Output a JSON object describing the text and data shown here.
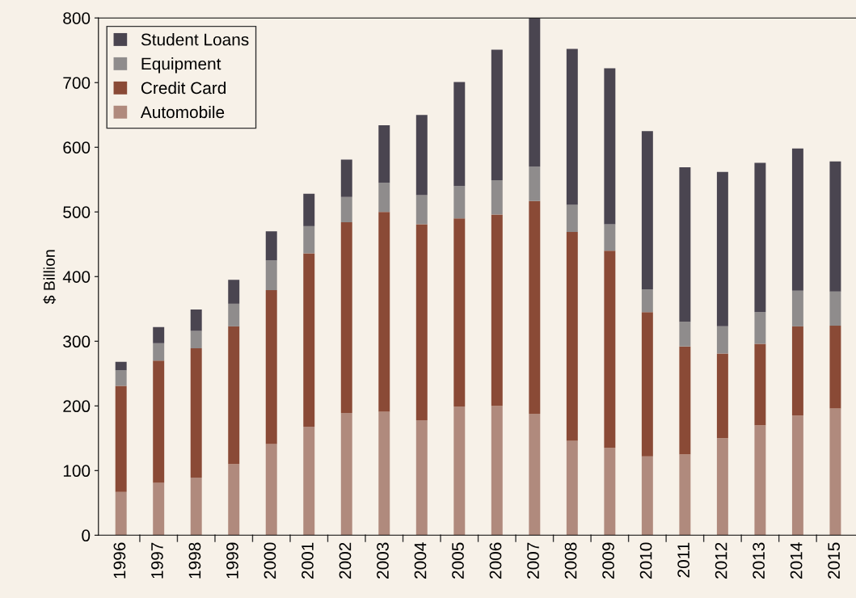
{
  "chart_data": {
    "type": "bar",
    "stacked": true,
    "ylabel": "$ Billion",
    "categories": [
      "1996",
      "1997",
      "1998",
      "1999",
      "2000",
      "2001",
      "2002",
      "2003",
      "2004",
      "2005",
      "2006",
      "2007",
      "2008",
      "2009",
      "2010",
      "2011",
      "2012",
      "2013",
      "2014",
      "2015"
    ],
    "series": [
      {
        "name": "Automobile",
        "color": "#b08a7d",
        "values": [
          67,
          81,
          89,
          110,
          141,
          168,
          189,
          191,
          178,
          199,
          200,
          188,
          146,
          135,
          122,
          125,
          150,
          170,
          185,
          196
        ]
      },
      {
        "name": "Credit Card",
        "color": "#8a4a36",
        "values": [
          164,
          189,
          200,
          213,
          238,
          268,
          295,
          309,
          303,
          291,
          296,
          329,
          323,
          305,
          223,
          167,
          131,
          126,
          138,
          128
        ]
      },
      {
        "name": "Equipment",
        "color": "#8f8c8c",
        "values": [
          24,
          27,
          27,
          35,
          46,
          42,
          39,
          45,
          45,
          50,
          53,
          53,
          42,
          41,
          35,
          38,
          42,
          49,
          55,
          53
        ]
      },
      {
        "name": "Student Loans",
        "color": "#4a4550",
        "values": [
          13,
          25,
          33,
          37,
          45,
          50,
          58,
          89,
          124,
          161,
          202,
          230,
          241,
          241,
          245,
          239,
          239,
          231,
          220,
          201
        ]
      }
    ],
    "ylim": [
      0,
      800
    ],
    "yticks": [
      0,
      100,
      200,
      300,
      400,
      500,
      600,
      700,
      800
    ],
    "grid": false,
    "legend": "top left"
  }
}
